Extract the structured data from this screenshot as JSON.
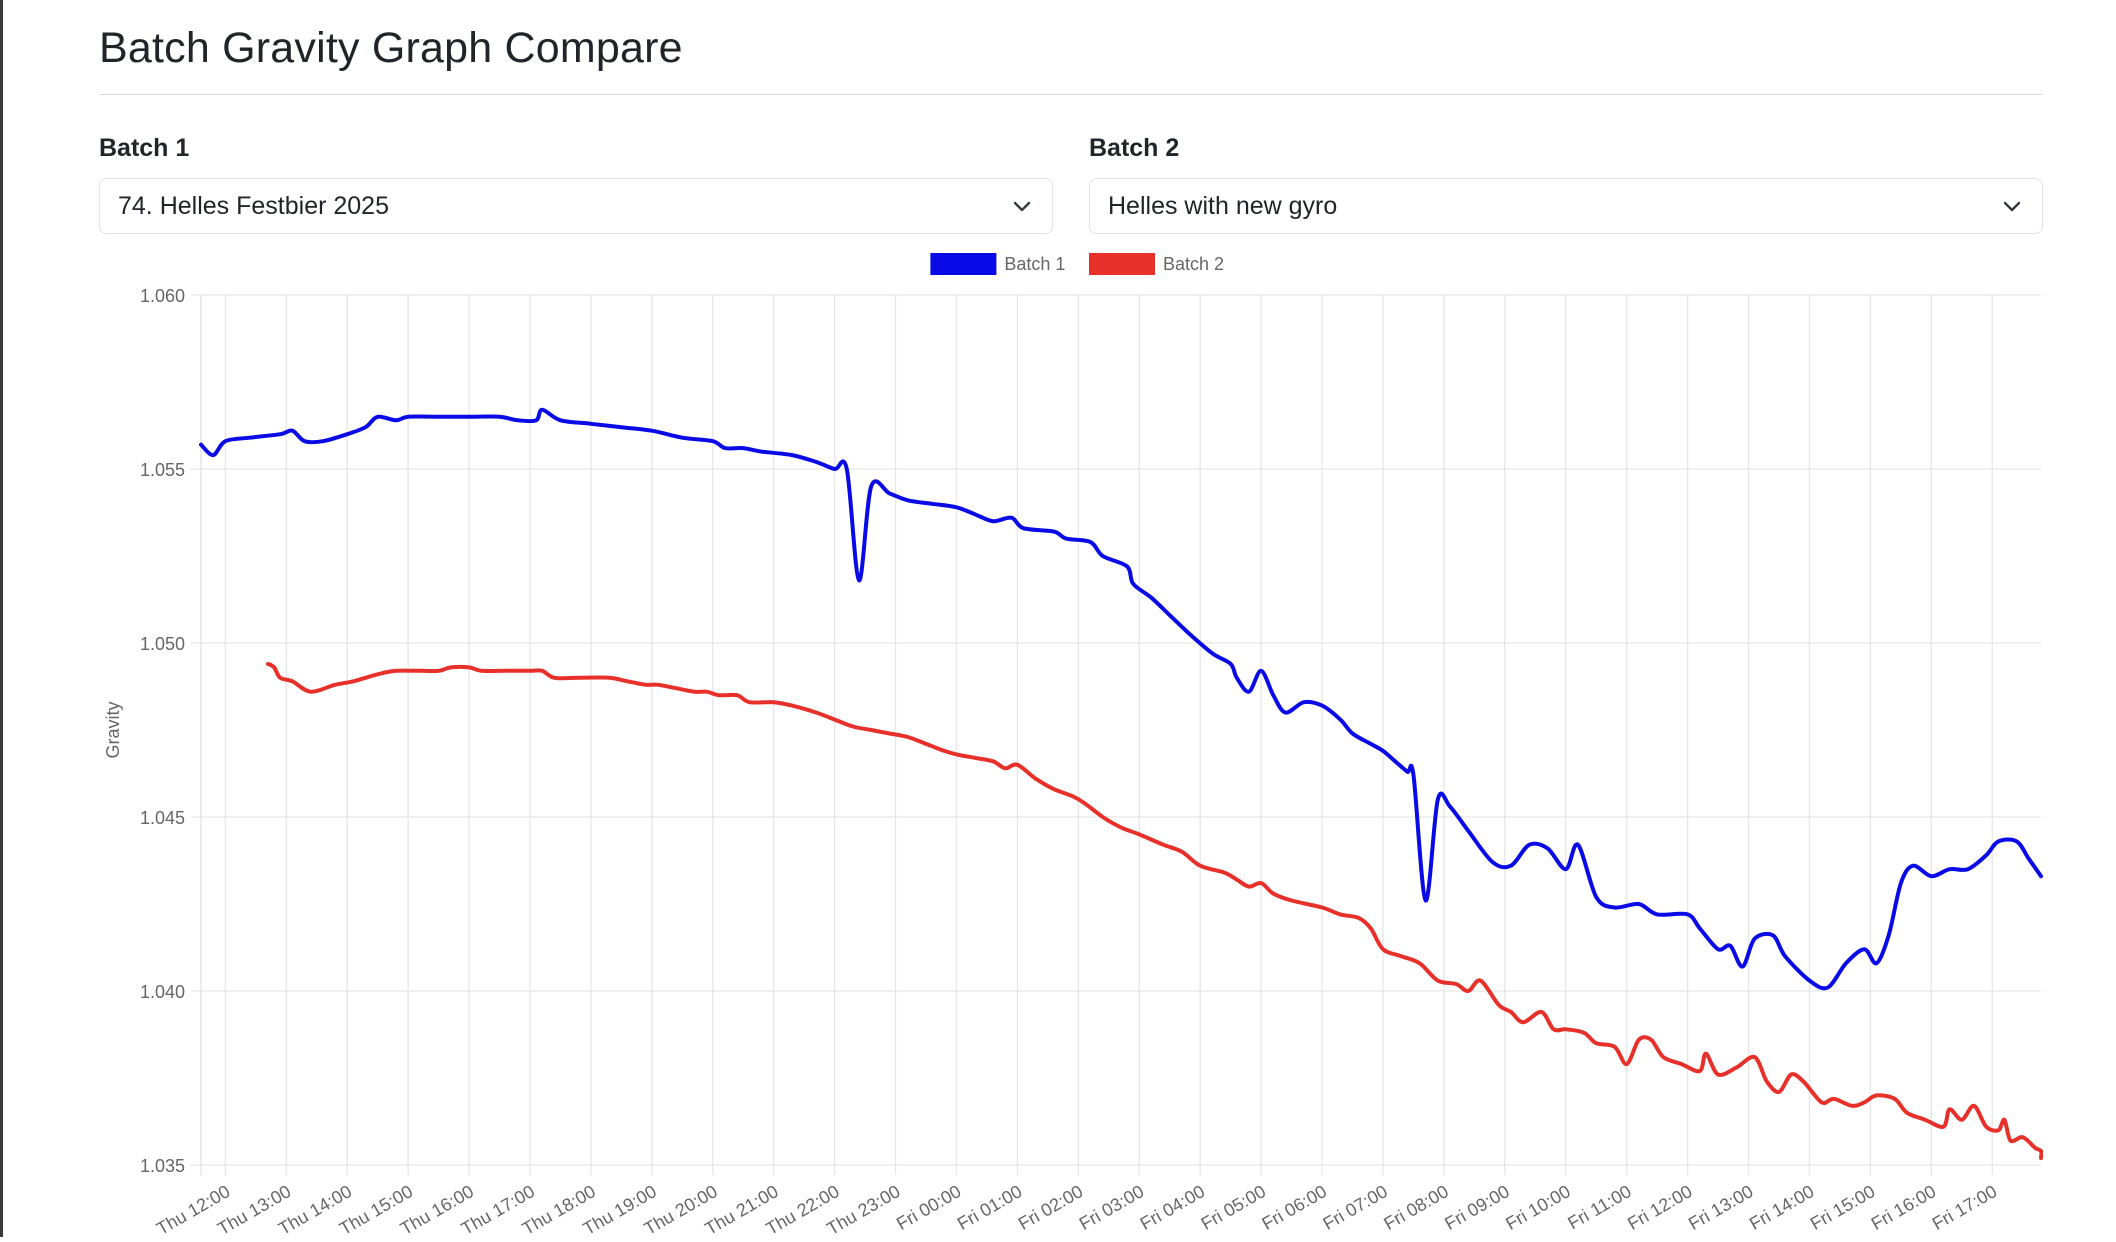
{
  "page": {
    "title": "Batch Gravity Graph Compare"
  },
  "batch1": {
    "label": "Batch 1",
    "selected": "74. Helles Festbier 2025"
  },
  "batch2": {
    "label": "Batch 2",
    "selected": "Helles with new gyro"
  },
  "chart_data": {
    "type": "line",
    "ylabel": "Gravity",
    "xlabel": "",
    "ylim": [
      1.035,
      1.06
    ],
    "y_ticks": [
      "1.035",
      "1.040",
      "1.045",
      "1.050",
      "1.055",
      "1.060"
    ],
    "x_range_hours": [
      11.6,
      41.8
    ],
    "x_ticks": [
      {
        "label": "Thu 12:00",
        "t": 12
      },
      {
        "label": "Thu 13:00",
        "t": 13
      },
      {
        "label": "Thu 14:00",
        "t": 14
      },
      {
        "label": "Thu 15:00",
        "t": 15
      },
      {
        "label": "Thu 16:00",
        "t": 16
      },
      {
        "label": "Thu 17:00",
        "t": 17
      },
      {
        "label": "Thu 18:00",
        "t": 18
      },
      {
        "label": "Thu 19:00",
        "t": 19
      },
      {
        "label": "Thu 20:00",
        "t": 20
      },
      {
        "label": "Thu 21:00",
        "t": 21
      },
      {
        "label": "Thu 22:00",
        "t": 22
      },
      {
        "label": "Thu 23:00",
        "t": 23
      },
      {
        "label": "Fri 00:00",
        "t": 24
      },
      {
        "label": "Fri 01:00",
        "t": 25
      },
      {
        "label": "Fri 02:00",
        "t": 26
      },
      {
        "label": "Fri 03:00",
        "t": 27
      },
      {
        "label": "Fri 04:00",
        "t": 28
      },
      {
        "label": "Fri 05:00",
        "t": 29
      },
      {
        "label": "Fri 06:00",
        "t": 30
      },
      {
        "label": "Fri 07:00",
        "t": 31
      },
      {
        "label": "Fri 08:00",
        "t": 32
      },
      {
        "label": "Fri 09:00",
        "t": 33
      },
      {
        "label": "Fri 10:00",
        "t": 34
      },
      {
        "label": "Fri 11:00",
        "t": 35
      },
      {
        "label": "Fri 12:00",
        "t": 36
      },
      {
        "label": "Fri 13:00",
        "t": 37
      },
      {
        "label": "Fri 14:00",
        "t": 38
      },
      {
        "label": "Fri 15:00",
        "t": 39
      },
      {
        "label": "Fri 16:00",
        "t": 40
      },
      {
        "label": "Fri 17:00",
        "t": 41
      }
    ],
    "legend_position": "top-center",
    "grid": true,
    "series": [
      {
        "name": "Batch 1",
        "color": "#0a0ae6",
        "points": [
          [
            11.6,
            1.0557
          ],
          [
            11.8,
            1.0554
          ],
          [
            12.0,
            1.0558
          ],
          [
            12.4,
            1.0559
          ],
          [
            12.9,
            1.056
          ],
          [
            13.1,
            1.0561
          ],
          [
            13.3,
            1.0558
          ],
          [
            13.6,
            1.0558
          ],
          [
            14.0,
            1.056
          ],
          [
            14.3,
            1.0562
          ],
          [
            14.5,
            1.0565
          ],
          [
            14.8,
            1.0564
          ],
          [
            15.0,
            1.0565
          ],
          [
            15.5,
            1.0565
          ],
          [
            16.0,
            1.0565
          ],
          [
            16.5,
            1.0565
          ],
          [
            16.8,
            1.0564
          ],
          [
            17.1,
            1.0564
          ],
          [
            17.2,
            1.0567
          ],
          [
            17.5,
            1.0564
          ],
          [
            18.0,
            1.0563
          ],
          [
            18.5,
            1.0562
          ],
          [
            19.0,
            1.0561
          ],
          [
            19.5,
            1.0559
          ],
          [
            20.0,
            1.0558
          ],
          [
            20.2,
            1.0556
          ],
          [
            20.5,
            1.0556
          ],
          [
            20.8,
            1.0555
          ],
          [
            21.3,
            1.0554
          ],
          [
            21.7,
            1.0552
          ],
          [
            22.0,
            1.055
          ],
          [
            22.2,
            1.055
          ],
          [
            22.4,
            1.0518
          ],
          [
            22.6,
            1.0545
          ],
          [
            22.9,
            1.0543
          ],
          [
            23.2,
            1.0541
          ],
          [
            23.6,
            1.054
          ],
          [
            24.0,
            1.0539
          ],
          [
            24.3,
            1.0537
          ],
          [
            24.6,
            1.0535
          ],
          [
            24.9,
            1.0536
          ],
          [
            25.1,
            1.0533
          ],
          [
            25.6,
            1.0532
          ],
          [
            25.8,
            1.053
          ],
          [
            26.2,
            1.0529
          ],
          [
            26.4,
            1.0525
          ],
          [
            26.8,
            1.0522
          ],
          [
            26.9,
            1.0517
          ],
          [
            27.2,
            1.0513
          ],
          [
            27.5,
            1.0508
          ],
          [
            27.8,
            1.0503
          ],
          [
            28.2,
            1.0497
          ],
          [
            28.5,
            1.0494
          ],
          [
            28.6,
            1.049
          ],
          [
            28.8,
            1.0486
          ],
          [
            29.0,
            1.0492
          ],
          [
            29.2,
            1.0485
          ],
          [
            29.4,
            1.048
          ],
          [
            29.7,
            1.0483
          ],
          [
            30.0,
            1.0482
          ],
          [
            30.3,
            1.0478
          ],
          [
            30.5,
            1.0474
          ],
          [
            30.8,
            1.0471
          ],
          [
            31.0,
            1.0469
          ],
          [
            31.2,
            1.0466
          ],
          [
            31.4,
            1.0463
          ],
          [
            31.5,
            1.0462
          ],
          [
            31.7,
            1.0426
          ],
          [
            31.9,
            1.0455
          ],
          [
            32.1,
            1.0453
          ],
          [
            32.4,
            1.0446
          ],
          [
            32.8,
            1.0437
          ],
          [
            33.1,
            1.0436
          ],
          [
            33.4,
            1.0442
          ],
          [
            33.7,
            1.0441
          ],
          [
            34.0,
            1.0435
          ],
          [
            34.2,
            1.0442
          ],
          [
            34.5,
            1.0427
          ],
          [
            34.8,
            1.0424
          ],
          [
            35.2,
            1.0425
          ],
          [
            35.5,
            1.0422
          ],
          [
            36.0,
            1.0422
          ],
          [
            36.2,
            1.0418
          ],
          [
            36.5,
            1.0412
          ],
          [
            36.7,
            1.0413
          ],
          [
            36.9,
            1.0407
          ],
          [
            37.1,
            1.0415
          ],
          [
            37.4,
            1.0416
          ],
          [
            37.6,
            1.041
          ],
          [
            38.0,
            1.0403
          ],
          [
            38.3,
            1.0401
          ],
          [
            38.6,
            1.0408
          ],
          [
            38.9,
            1.0412
          ],
          [
            39.1,
            1.0408
          ],
          [
            39.3,
            1.0416
          ],
          [
            39.5,
            1.0431
          ],
          [
            39.7,
            1.0436
          ],
          [
            40.0,
            1.0433
          ],
          [
            40.3,
            1.0435
          ],
          [
            40.6,
            1.0435
          ],
          [
            40.9,
            1.0439
          ],
          [
            41.1,
            1.0443
          ],
          [
            41.4,
            1.0443
          ],
          [
            41.6,
            1.0438
          ],
          [
            41.8,
            1.0433
          ]
        ]
      },
      {
        "name": "Batch 2",
        "color": "#e8302a",
        "points": [
          [
            12.7,
            1.0494
          ],
          [
            12.8,
            1.0493
          ],
          [
            12.9,
            1.049
          ],
          [
            13.1,
            1.0489
          ],
          [
            13.4,
            1.0486
          ],
          [
            13.8,
            1.0488
          ],
          [
            14.1,
            1.0489
          ],
          [
            14.5,
            1.0491
          ],
          [
            14.8,
            1.0492
          ],
          [
            15.2,
            1.0492
          ],
          [
            15.5,
            1.0492
          ],
          [
            15.7,
            1.0493
          ],
          [
            16.0,
            1.0493
          ],
          [
            16.2,
            1.0492
          ],
          [
            16.6,
            1.0492
          ],
          [
            17.0,
            1.0492
          ],
          [
            17.2,
            1.0492
          ],
          [
            17.4,
            1.049
          ],
          [
            17.8,
            1.049
          ],
          [
            18.3,
            1.049
          ],
          [
            18.6,
            1.0489
          ],
          [
            18.9,
            1.0488
          ],
          [
            19.1,
            1.0488
          ],
          [
            19.4,
            1.0487
          ],
          [
            19.7,
            1.0486
          ],
          [
            19.9,
            1.0486
          ],
          [
            20.1,
            1.0485
          ],
          [
            20.4,
            1.0485
          ],
          [
            20.6,
            1.0483
          ],
          [
            21.0,
            1.0483
          ],
          [
            21.3,
            1.0482
          ],
          [
            21.7,
            1.048
          ],
          [
            22.0,
            1.0478
          ],
          [
            22.3,
            1.0476
          ],
          [
            22.6,
            1.0475
          ],
          [
            22.9,
            1.0474
          ],
          [
            23.2,
            1.0473
          ],
          [
            23.5,
            1.0471
          ],
          [
            23.8,
            1.0469
          ],
          [
            24.0,
            1.0468
          ],
          [
            24.3,
            1.0467
          ],
          [
            24.6,
            1.0466
          ],
          [
            24.8,
            1.0464
          ],
          [
            25.0,
            1.0465
          ],
          [
            25.3,
            1.0461
          ],
          [
            25.6,
            1.0458
          ],
          [
            25.9,
            1.0456
          ],
          [
            26.1,
            1.0454
          ],
          [
            26.4,
            1.045
          ],
          [
            26.7,
            1.0447
          ],
          [
            27.0,
            1.0445
          ],
          [
            27.4,
            1.0442
          ],
          [
            27.7,
            1.044
          ],
          [
            28.0,
            1.0436
          ],
          [
            28.4,
            1.0434
          ],
          [
            28.6,
            1.0432
          ],
          [
            28.8,
            1.043
          ],
          [
            29.0,
            1.0431
          ],
          [
            29.2,
            1.0428
          ],
          [
            29.5,
            1.0426
          ],
          [
            30.0,
            1.0424
          ],
          [
            30.3,
            1.0422
          ],
          [
            30.6,
            1.0421
          ],
          [
            30.8,
            1.0418
          ],
          [
            31.0,
            1.0412
          ],
          [
            31.3,
            1.041
          ],
          [
            31.6,
            1.0408
          ],
          [
            31.9,
            1.0403
          ],
          [
            32.2,
            1.0402
          ],
          [
            32.4,
            1.04
          ],
          [
            32.6,
            1.0403
          ],
          [
            32.9,
            1.0396
          ],
          [
            33.1,
            1.0394
          ],
          [
            33.3,
            1.0391
          ],
          [
            33.6,
            1.0394
          ],
          [
            33.8,
            1.0389
          ],
          [
            34.0,
            1.0389
          ],
          [
            34.3,
            1.0388
          ],
          [
            34.5,
            1.0385
          ],
          [
            34.8,
            1.0384
          ],
          [
            35.0,
            1.0379
          ],
          [
            35.2,
            1.0386
          ],
          [
            35.4,
            1.0386
          ],
          [
            35.6,
            1.0381
          ],
          [
            35.9,
            1.0379
          ],
          [
            36.2,
            1.0377
          ],
          [
            36.3,
            1.0382
          ],
          [
            36.5,
            1.0376
          ],
          [
            36.8,
            1.0378
          ],
          [
            37.1,
            1.0381
          ],
          [
            37.3,
            1.0374
          ],
          [
            37.5,
            1.0371
          ],
          [
            37.7,
            1.0376
          ],
          [
            37.9,
            1.0374
          ],
          [
            38.2,
            1.0368
          ],
          [
            38.4,
            1.0369
          ],
          [
            38.7,
            1.0367
          ],
          [
            38.9,
            1.0368
          ],
          [
            39.1,
            1.037
          ],
          [
            39.4,
            1.0369
          ],
          [
            39.6,
            1.0365
          ],
          [
            39.9,
            1.0363
          ],
          [
            40.2,
            1.0361
          ],
          [
            40.3,
            1.0366
          ],
          [
            40.5,
            1.0363
          ],
          [
            40.7,
            1.0367
          ],
          [
            40.9,
            1.0361
          ],
          [
            41.1,
            1.036
          ],
          [
            41.2,
            1.0363
          ],
          [
            41.3,
            1.0357
          ],
          [
            41.5,
            1.0358
          ],
          [
            41.7,
            1.0355
          ],
          [
            41.8,
            1.0354
          ],
          [
            42.0,
            1.0352
          ]
        ]
      }
    ]
  }
}
